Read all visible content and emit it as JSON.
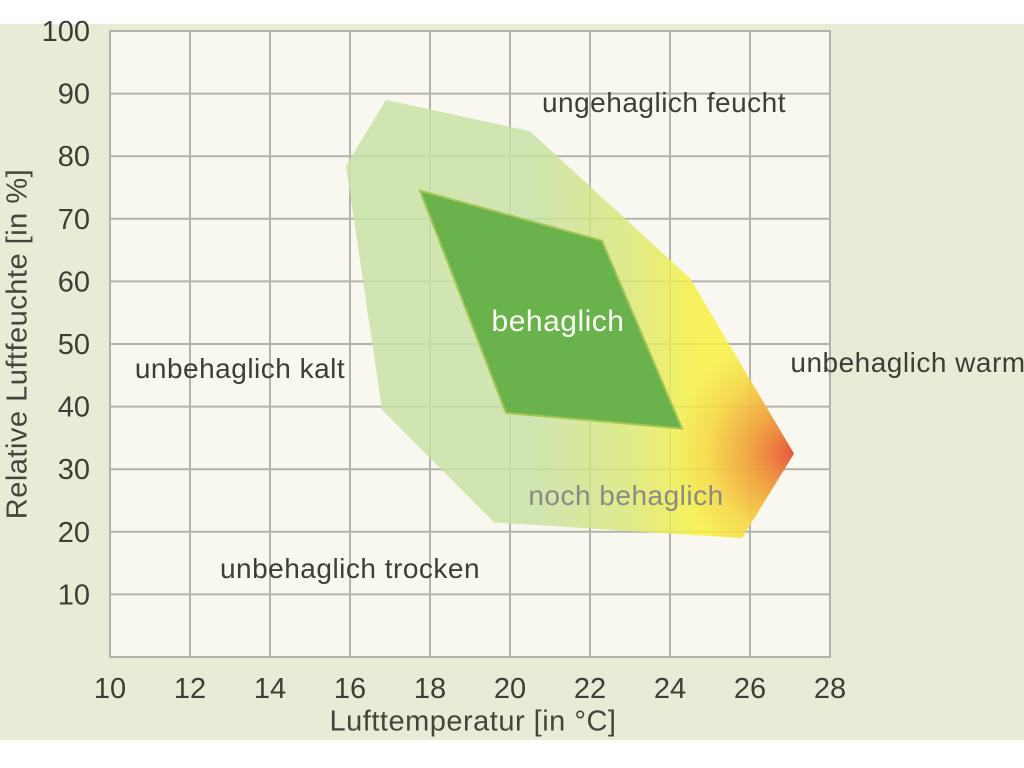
{
  "colors": {
    "background": "#ffffff",
    "panel": "#eaebd7",
    "plot_bg": "#f8f8f1",
    "grid": "#b3b3ab",
    "zone_light_green": "#c9e2a4",
    "zone_mid_green": "#d9e87c",
    "zone_yellow": "#f7f041",
    "zone_orange": "#f09a40",
    "zone_red": "#e8573f",
    "zone_core_green": "#6ab34c",
    "zone_core_stroke": "#a3c654",
    "text_dark": "#3e3e36",
    "text_muted": "#8b8b83",
    "text_light": "#fbfbf6"
  },
  "chart_data": {
    "type": "area",
    "title": "",
    "xlabel": "Lufttemperatur [in °C]",
    "ylabel": "Relative Luftfeuchte [in %]",
    "xlim": [
      10,
      28
    ],
    "ylim": [
      0,
      100
    ],
    "grid": true,
    "x_ticks": [
      10,
      12,
      14,
      16,
      18,
      20,
      22,
      24,
      26,
      28
    ],
    "y_ticks": [
      10,
      20,
      30,
      40,
      50,
      60,
      70,
      80,
      90,
      100
    ],
    "zones": [
      {
        "name": "noch behaglich",
        "fill": "green-to-yellow-to-red gradient",
        "points": [
          [
            16.9,
            89
          ],
          [
            20.5,
            84
          ],
          [
            24.5,
            60.5
          ],
          [
            27.1,
            32.5
          ],
          [
            25.8,
            19
          ],
          [
            19.6,
            21.5
          ],
          [
            16.8,
            39.5
          ],
          [
            15.9,
            78.5
          ]
        ]
      },
      {
        "name": "behaglich",
        "fill": "solid green",
        "points": [
          [
            17.75,
            74.5
          ],
          [
            22.3,
            66.5
          ],
          [
            24.3,
            36.5
          ],
          [
            19.9,
            39
          ]
        ]
      }
    ],
    "annotations": [
      {
        "text": "ungehaglich feucht",
        "x": 23.85,
        "y": 88.5,
        "style": "dark"
      },
      {
        "text": "unbehaglich kalt",
        "x": 13.25,
        "y": 46,
        "style": "dark"
      },
      {
        "text": "unbehaglich trocken",
        "x": 16.0,
        "y": 14,
        "style": "dark"
      },
      {
        "text": "unbehaglich warm",
        "x": 29.95,
        "y": 47,
        "style": "dark"
      },
      {
        "text": "noch behaglich",
        "x": 22.9,
        "y": 25.7,
        "style": "muted"
      },
      {
        "text": "behaglich",
        "x": 21.2,
        "y": 53.5,
        "style": "light"
      }
    ]
  }
}
